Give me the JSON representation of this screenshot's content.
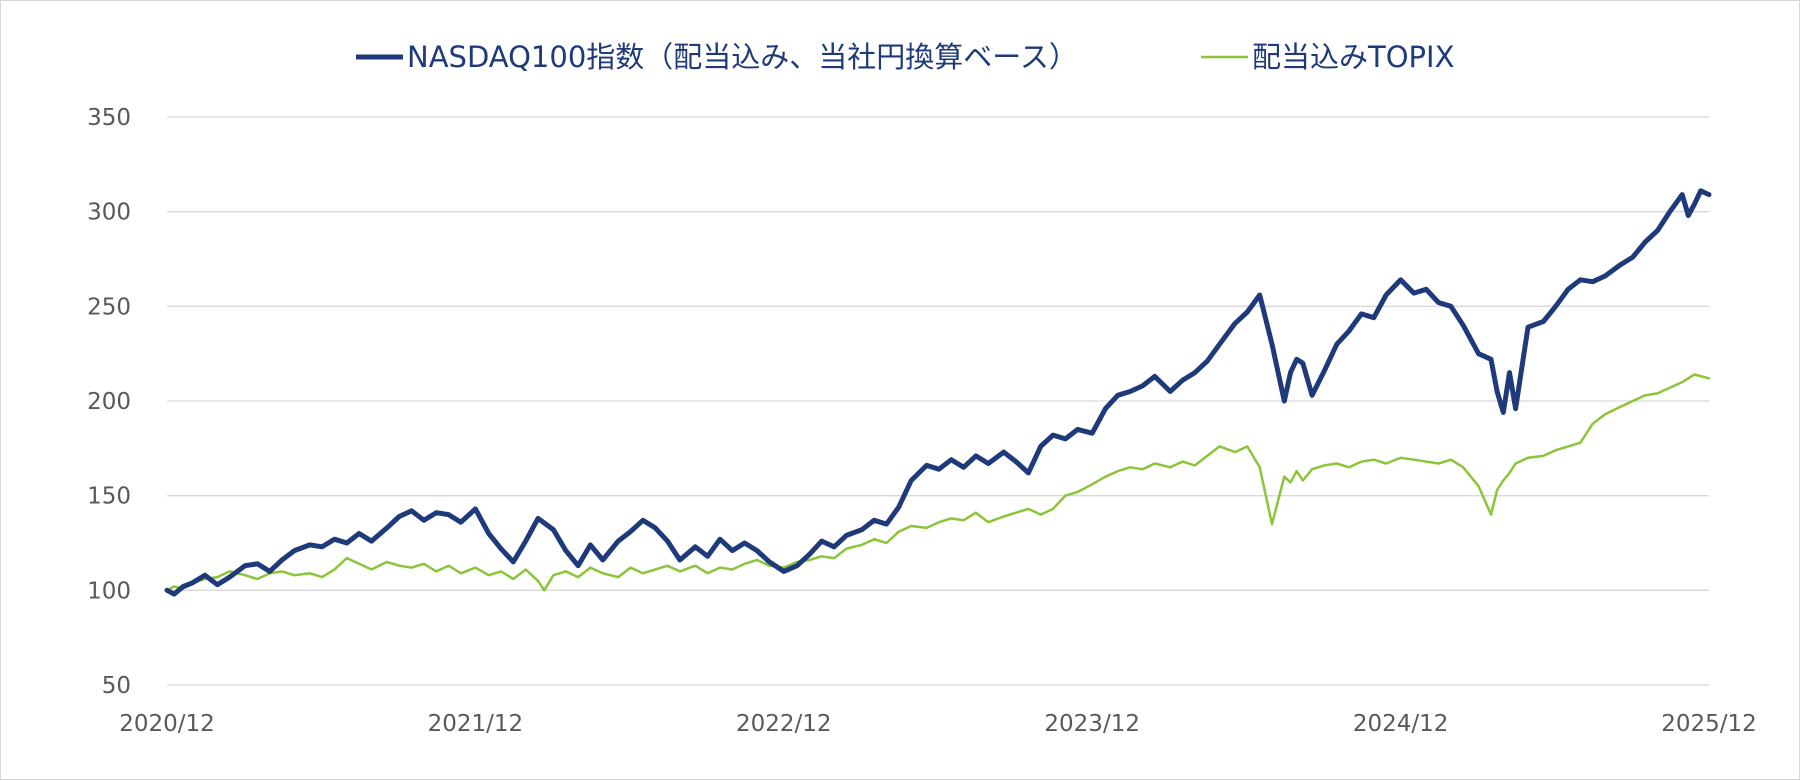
{
  "chart_data": {
    "type": "line",
    "title": "",
    "xlabel": "",
    "ylabel": "",
    "ylim": [
      50,
      350
    ],
    "yticks": [
      50,
      100,
      150,
      200,
      250,
      300,
      350
    ],
    "xlim": [
      2020.917,
      2025.917
    ],
    "x_tick_labels": [
      "2020/12",
      "2021/12",
      "2022/12",
      "2023/12",
      "2024/12",
      "2025/12"
    ],
    "x_tick_values": [
      2020.917,
      2021.917,
      2022.917,
      2023.917,
      2024.917,
      2025.917
    ],
    "grid": true,
    "legend": "top",
    "series": [
      {
        "name": "NASDAQ100指数（配当込み、当社円換算ベース）",
        "color": "#1f3a7a",
        "x": [
          2020.917,
          2020.94,
          2020.97,
          2021.0,
          2021.04,
          2021.08,
          2021.12,
          2021.17,
          2021.21,
          2021.25,
          2021.29,
          2021.33,
          2021.38,
          2021.42,
          2021.46,
          2021.5,
          2021.54,
          2021.58,
          2021.63,
          2021.67,
          2021.71,
          2021.75,
          2021.79,
          2021.83,
          2021.87,
          2021.917,
          2021.96,
          2022.0,
          2022.04,
          2022.08,
          2022.12,
          2022.17,
          2022.21,
          2022.25,
          2022.29,
          2022.33,
          2022.38,
          2022.42,
          2022.46,
          2022.5,
          2022.54,
          2022.58,
          2022.63,
          2022.67,
          2022.71,
          2022.75,
          2022.79,
          2022.83,
          2022.87,
          2022.917,
          2022.96,
          2023.0,
          2023.04,
          2023.08,
          2023.12,
          2023.17,
          2023.21,
          2023.25,
          2023.29,
          2023.33,
          2023.38,
          2023.42,
          2023.46,
          2023.5,
          2023.54,
          2023.58,
          2023.63,
          2023.67,
          2023.71,
          2023.75,
          2023.79,
          2023.83,
          2023.87,
          2023.917,
          2023.96,
          2024.0,
          2024.04,
          2024.08,
          2024.12,
          2024.17,
          2024.21,
          2024.25,
          2024.29,
          2024.33,
          2024.38,
          2024.42,
          2024.46,
          2024.5,
          2024.54,
          2024.56,
          2024.58,
          2024.6,
          2024.63,
          2024.67,
          2024.71,
          2024.75,
          2024.79,
          2024.83,
          2024.87,
          2024.917,
          2024.96,
          2025.0,
          2025.04,
          2025.08,
          2025.12,
          2025.17,
          2025.21,
          2025.23,
          2025.25,
          2025.27,
          2025.29,
          2025.33,
          2025.38,
          2025.42,
          2025.46,
          2025.5,
          2025.54,
          2025.58,
          2025.63,
          2025.67,
          2025.71,
          2025.75,
          2025.79,
          2025.83,
          2025.85,
          2025.87,
          2025.89,
          2025.917
        ],
        "values": [
          100,
          98,
          102,
          104,
          108,
          103,
          107,
          113,
          114,
          110,
          116,
          121,
          124,
          123,
          127,
          125,
          130,
          126,
          133,
          139,
          142,
          137,
          141,
          140,
          136,
          143,
          130,
          122,
          115,
          126,
          138,
          132,
          121,
          113,
          124,
          116,
          126,
          131,
          137,
          133,
          126,
          116,
          123,
          118,
          127,
          121,
          125,
          121,
          115,
          110,
          113,
          119,
          126,
          123,
          129,
          132,
          137,
          135,
          144,
          158,
          166,
          164,
          169,
          165,
          171,
          167,
          173,
          168,
          162,
          176,
          182,
          180,
          185,
          183,
          196,
          203,
          205,
          208,
          213,
          205,
          211,
          215,
          221,
          230,
          241,
          247,
          256,
          230,
          200,
          215,
          222,
          220,
          203,
          216,
          230,
          237,
          246,
          244,
          256,
          264,
          257,
          259,
          252,
          250,
          240,
          225,
          222,
          205,
          194,
          215,
          196,
          239,
          242,
          250,
          259,
          264,
          263,
          266,
          272,
          276,
          284,
          290,
          300,
          309,
          298,
          304,
          311,
          309
        ]
      },
      {
        "name": "配当込みTOPIX",
        "color": "#8cc43a",
        "x": [
          2020.917,
          2020.94,
          2020.97,
          2021.0,
          2021.04,
          2021.08,
          2021.12,
          2021.17,
          2021.21,
          2021.25,
          2021.29,
          2021.33,
          2021.38,
          2021.42,
          2021.46,
          2021.5,
          2021.54,
          2021.58,
          2021.63,
          2021.67,
          2021.71,
          2021.75,
          2021.79,
          2021.83,
          2021.87,
          2021.917,
          2021.96,
          2022.0,
          2022.04,
          2022.08,
          2022.12,
          2022.14,
          2022.17,
          2022.21,
          2022.25,
          2022.29,
          2022.33,
          2022.38,
          2022.42,
          2022.46,
          2022.5,
          2022.54,
          2022.58,
          2022.63,
          2022.67,
          2022.71,
          2022.75,
          2022.79,
          2022.83,
          2022.87,
          2022.917,
          2022.96,
          2023.0,
          2023.04,
          2023.08,
          2023.12,
          2023.17,
          2023.21,
          2023.25,
          2023.29,
          2023.33,
          2023.38,
          2023.42,
          2023.46,
          2023.5,
          2023.54,
          2023.58,
          2023.63,
          2023.67,
          2023.71,
          2023.75,
          2023.79,
          2023.83,
          2023.87,
          2023.917,
          2023.96,
          2024.0,
          2024.04,
          2024.08,
          2024.12,
          2024.17,
          2024.21,
          2024.25,
          2024.29,
          2024.33,
          2024.38,
          2024.42,
          2024.46,
          2024.5,
          2024.54,
          2024.56,
          2024.58,
          2024.6,
          2024.63,
          2024.67,
          2024.71,
          2024.75,
          2024.79,
          2024.83,
          2024.87,
          2024.917,
          2024.96,
          2025.0,
          2025.04,
          2025.08,
          2025.12,
          2025.17,
          2025.21,
          2025.23,
          2025.25,
          2025.27,
          2025.29,
          2025.33,
          2025.38,
          2025.42,
          2025.46,
          2025.5,
          2025.54,
          2025.58,
          2025.63,
          2025.67,
          2025.71,
          2025.75,
          2025.79,
          2025.83,
          2025.87,
          2025.917
        ],
        "values": [
          100,
          102,
          101,
          104,
          106,
          107,
          110,
          108,
          106,
          109,
          110,
          108,
          109,
          107,
          111,
          117,
          114,
          111,
          115,
          113,
          112,
          114,
          110,
          113,
          109,
          112,
          108,
          110,
          106,
          111,
          105,
          100,
          108,
          110,
          107,
          112,
          109,
          107,
          112,
          109,
          111,
          113,
          110,
          113,
          109,
          112,
          111,
          114,
          116,
          113,
          112,
          115,
          116,
          118,
          117,
          122,
          124,
          127,
          125,
          131,
          134,
          133,
          136,
          138,
          137,
          141,
          136,
          139,
          141,
          143,
          140,
          143,
          150,
          152,
          156,
          160,
          163,
          165,
          164,
          167,
          165,
          168,
          166,
          171,
          176,
          173,
          176,
          165,
          135,
          160,
          157,
          163,
          158,
          164,
          166,
          167,
          165,
          168,
          169,
          167,
          170,
          169,
          168,
          167,
          169,
          165,
          155,
          140,
          153,
          158,
          162,
          167,
          170,
          171,
          174,
          176,
          178,
          188,
          193,
          197,
          200,
          203,
          204,
          207,
          210,
          214,
          212
        ]
      }
    ]
  }
}
